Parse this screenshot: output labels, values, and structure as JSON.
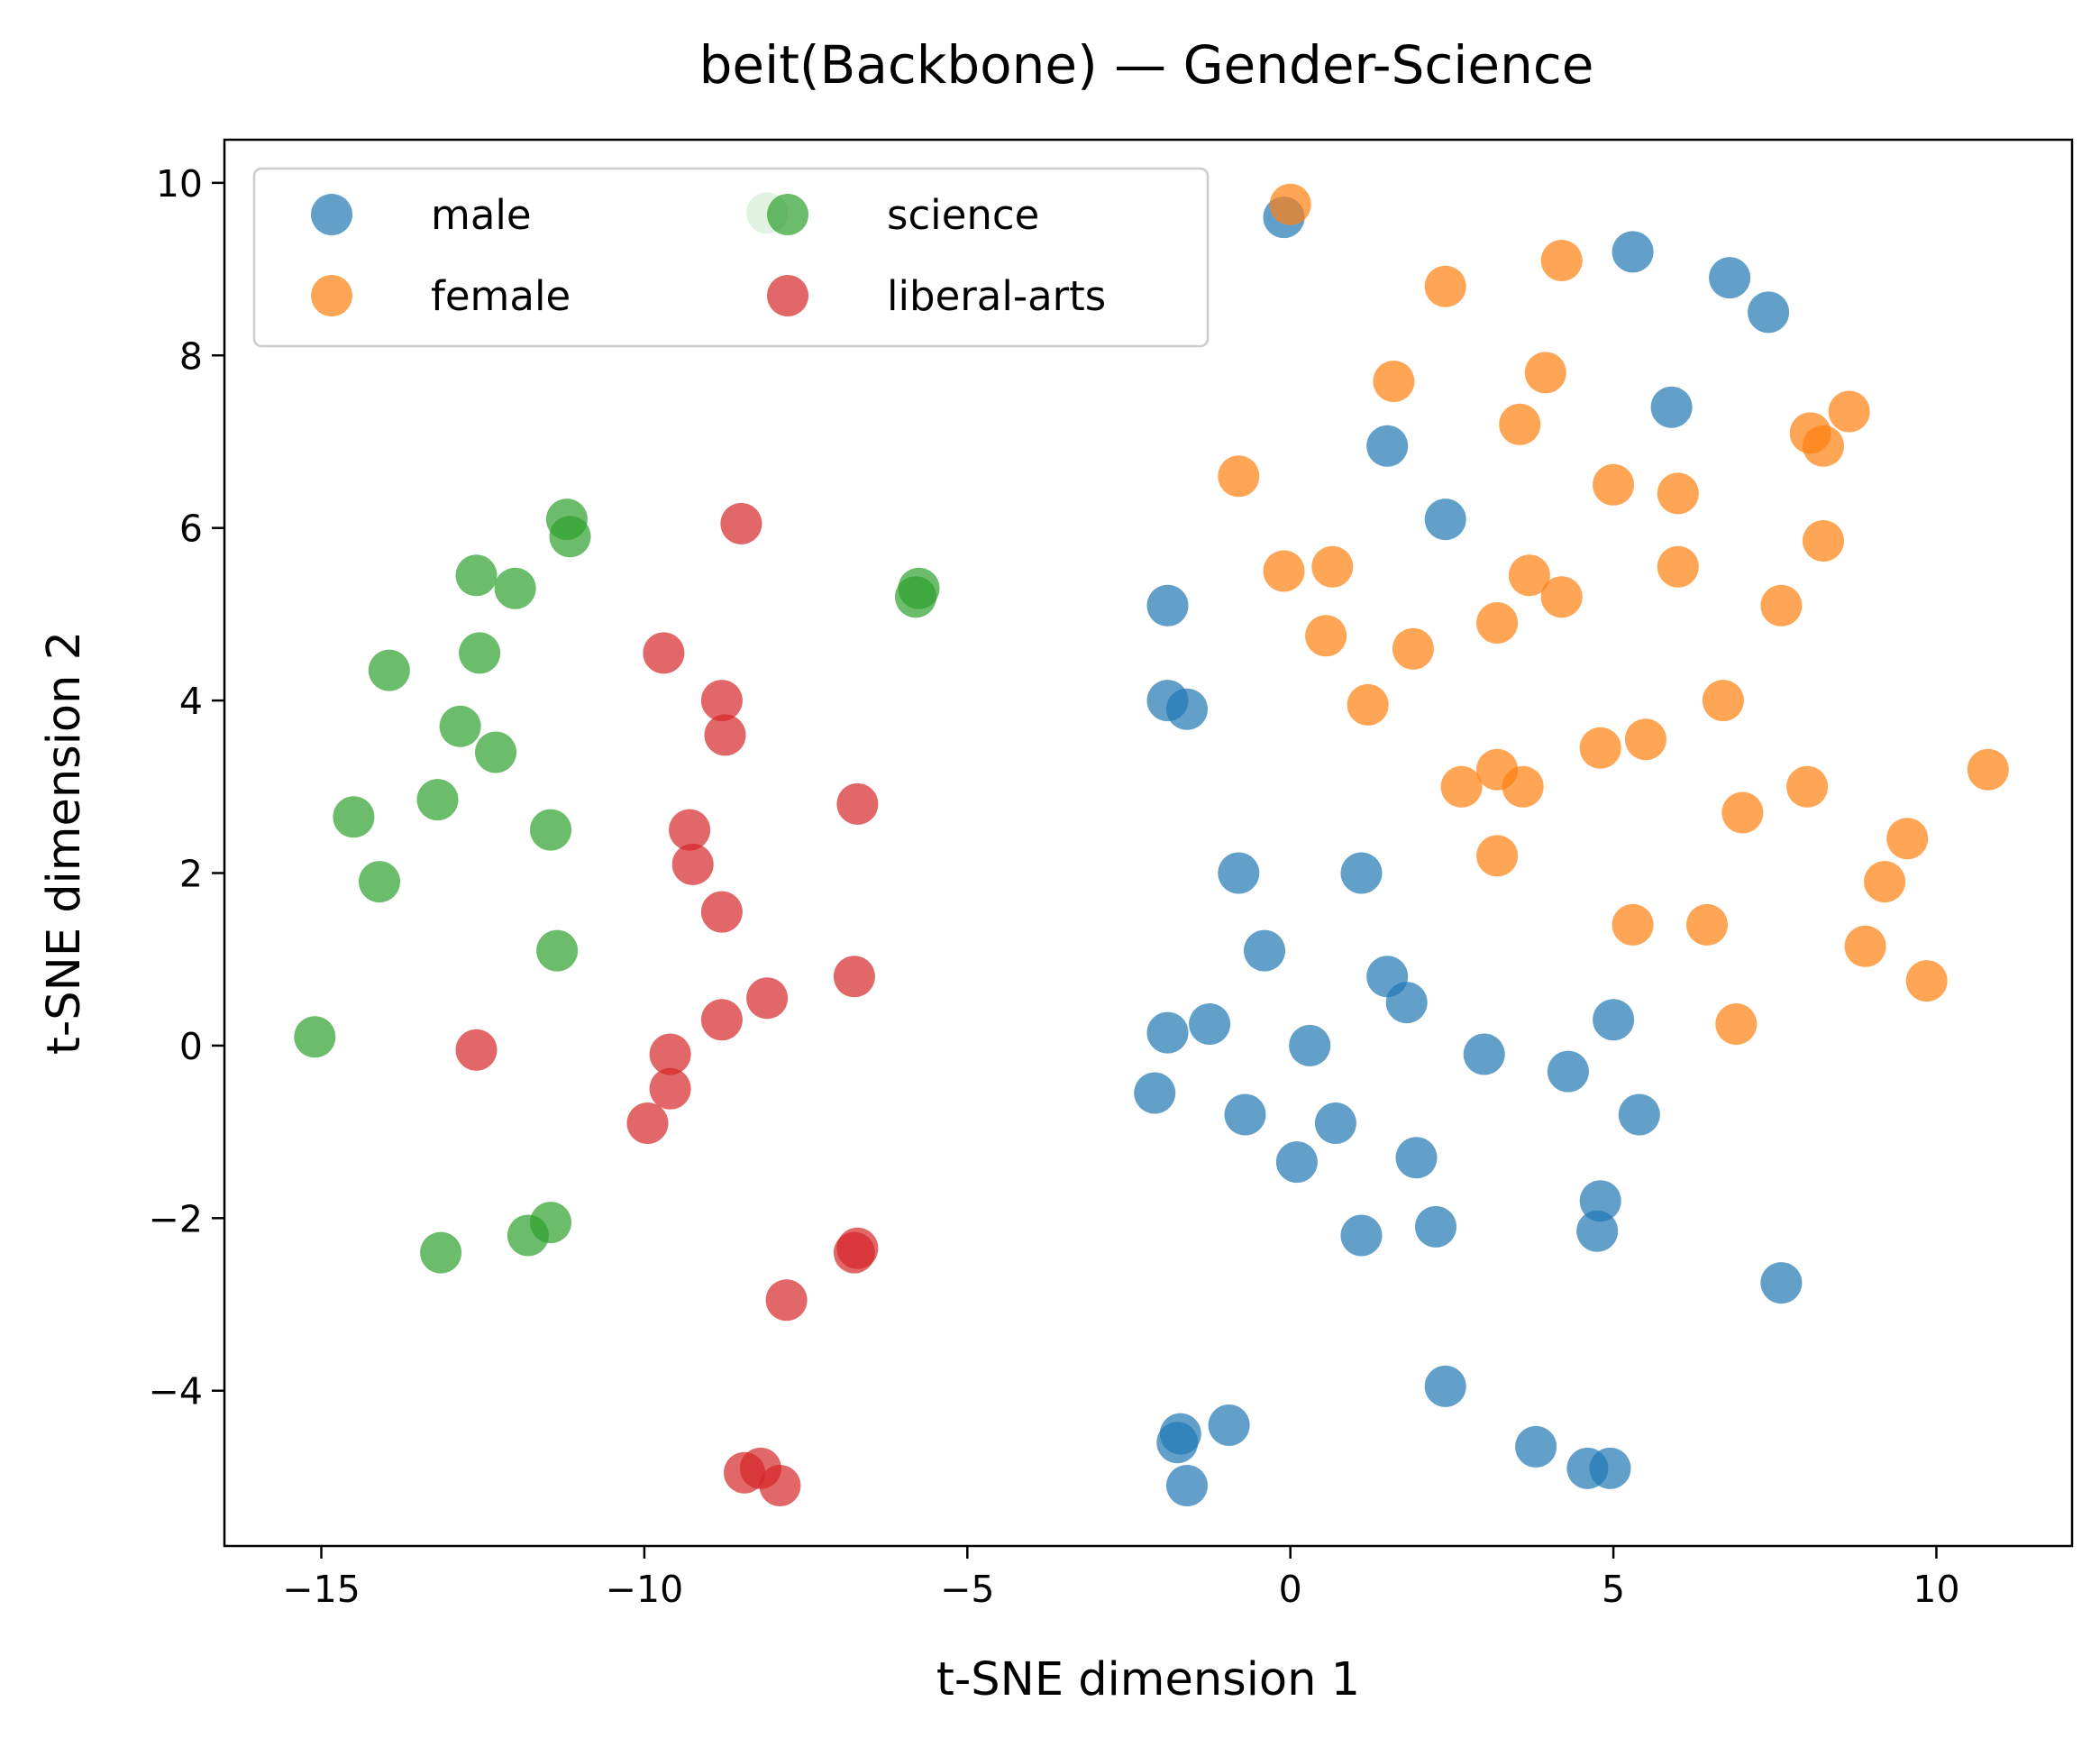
{
  "chart_data": {
    "type": "scatter",
    "title": "beit(Backbone) — Gender-Science",
    "xlabel": "t-SNE dimension 1",
    "ylabel": "t-SNE dimension 2",
    "xlim": [
      -16.5,
      12.1
    ],
    "ylim": [
      -5.8,
      10.5
    ],
    "xticks": [
      -15,
      -10,
      -5,
      0,
      5,
      10
    ],
    "xtick_labels": [
      "−15",
      "−10",
      "−5",
      "0",
      "5",
      "10"
    ],
    "yticks": [
      -4,
      -2,
      0,
      2,
      4,
      6,
      8,
      10
    ],
    "ytick_labels": [
      "−4",
      "−2",
      "0",
      "2",
      "4",
      "6",
      "8",
      "10"
    ],
    "grid": false,
    "legend": {
      "placement": "upper-left",
      "columns": 2
    },
    "series": [
      {
        "name": "male",
        "color": "#1f77b4",
        "points": [
          [
            -0.1,
            9.6
          ],
          [
            5.3,
            9.2
          ],
          [
            6.8,
            8.9
          ],
          [
            7.4,
            8.5
          ],
          [
            5.9,
            7.4
          ],
          [
            1.5,
            6.95
          ],
          [
            2.4,
            6.1
          ],
          [
            -1.9,
            5.1
          ],
          [
            -1.9,
            4.0
          ],
          [
            -1.6,
            3.9
          ],
          [
            -0.8,
            2.0
          ],
          [
            1.1,
            2.0
          ],
          [
            -0.4,
            1.1
          ],
          [
            1.5,
            0.8
          ],
          [
            1.8,
            0.5
          ],
          [
            5.0,
            0.3
          ],
          [
            -1.9,
            0.15
          ],
          [
            -1.25,
            0.25
          ],
          [
            0.3,
            0.0
          ],
          [
            3.0,
            -0.1
          ],
          [
            4.3,
            -0.3
          ],
          [
            -2.1,
            -0.55
          ],
          [
            -0.7,
            -0.8
          ],
          [
            0.7,
            -0.9
          ],
          [
            5.4,
            -0.8
          ],
          [
            0.1,
            -1.35
          ],
          [
            1.95,
            -1.3
          ],
          [
            4.8,
            -1.8
          ],
          [
            4.75,
            -2.15
          ],
          [
            1.1,
            -2.2
          ],
          [
            2.25,
            -2.1
          ],
          [
            7.6,
            -2.75
          ],
          [
            2.4,
            -3.95
          ],
          [
            -0.95,
            -4.4
          ],
          [
            -1.7,
            -4.5
          ],
          [
            -1.75,
            -4.6
          ],
          [
            -1.6,
            -5.1
          ],
          [
            3.8,
            -4.65
          ],
          [
            4.6,
            -4.9
          ],
          [
            4.95,
            -4.9
          ]
        ]
      },
      {
        "name": "female",
        "color": "#ff7f0e",
        "points": [
          [
            0.0,
            9.75
          ],
          [
            4.2,
            9.1
          ],
          [
            2.4,
            8.8
          ],
          [
            3.95,
            7.8
          ],
          [
            1.6,
            7.7
          ],
          [
            3.55,
            7.2
          ],
          [
            8.05,
            7.1
          ],
          [
            8.25,
            6.95
          ],
          [
            8.65,
            7.35
          ],
          [
            -0.8,
            6.6
          ],
          [
            5.0,
            6.5
          ],
          [
            6.0,
            6.4
          ],
          [
            8.25,
            5.85
          ],
          [
            -0.1,
            5.5
          ],
          [
            0.65,
            5.55
          ],
          [
            3.7,
            5.45
          ],
          [
            4.2,
            5.2
          ],
          [
            6.0,
            5.55
          ],
          [
            7.6,
            5.1
          ],
          [
            0.55,
            4.75
          ],
          [
            1.9,
            4.6
          ],
          [
            3.2,
            4.9
          ],
          [
            1.2,
            3.95
          ],
          [
            6.7,
            4.0
          ],
          [
            4.8,
            3.45
          ],
          [
            5.5,
            3.55
          ],
          [
            3.2,
            3.2
          ],
          [
            2.65,
            3.0
          ],
          [
            3.6,
            3.0
          ],
          [
            8.0,
            3.0
          ],
          [
            10.8,
            3.2
          ],
          [
            7.0,
            2.7
          ],
          [
            3.2,
            2.2
          ],
          [
            9.55,
            2.4
          ],
          [
            9.2,
            1.9
          ],
          [
            5.3,
            1.4
          ],
          [
            6.45,
            1.4
          ],
          [
            8.9,
            1.15
          ],
          [
            9.85,
            0.75
          ],
          [
            6.9,
            0.25
          ]
        ]
      },
      {
        "name": "science",
        "color": "#2ca02c",
        "points": [
          [
            -8.1,
            9.65
          ],
          [
            -11.2,
            6.1
          ],
          [
            -11.15,
            5.9
          ],
          [
            -12.6,
            5.45
          ],
          [
            -12.0,
            5.3
          ],
          [
            -5.75,
            5.3
          ],
          [
            -5.8,
            5.2
          ],
          [
            -12.55,
            4.55
          ],
          [
            -13.95,
            4.35
          ],
          [
            -12.85,
            3.7
          ],
          [
            -12.3,
            3.4
          ],
          [
            -13.2,
            2.85
          ],
          [
            -14.5,
            2.65
          ],
          [
            -11.45,
            2.5
          ],
          [
            -14.1,
            1.9
          ],
          [
            -11.35,
            1.1
          ],
          [
            -15.1,
            0.1
          ],
          [
            -11.8,
            -2.2
          ],
          [
            -11.45,
            -2.05
          ],
          [
            -13.15,
            -2.4
          ]
        ]
      },
      {
        "name": "liberal-arts",
        "color": "#d62728",
        "points": [
          [
            -8.5,
            6.05
          ],
          [
            -9.7,
            4.55
          ],
          [
            -8.8,
            4.0
          ],
          [
            -8.75,
            3.6
          ],
          [
            -6.7,
            2.8
          ],
          [
            -9.3,
            2.5
          ],
          [
            -9.25,
            2.1
          ],
          [
            -8.8,
            1.55
          ],
          [
            -6.75,
            0.8
          ],
          [
            -8.1,
            0.55
          ],
          [
            -8.8,
            0.3
          ],
          [
            -12.6,
            -0.05
          ],
          [
            -9.6,
            -0.1
          ],
          [
            -9.6,
            -0.5
          ],
          [
            -9.95,
            -0.9
          ],
          [
            -6.7,
            -2.35
          ],
          [
            -6.75,
            -2.4
          ],
          [
            -7.8,
            -2.95
          ],
          [
            -8.2,
            -4.9
          ],
          [
            -8.45,
            -4.95
          ],
          [
            -7.9,
            -5.1
          ]
        ]
      }
    ]
  }
}
